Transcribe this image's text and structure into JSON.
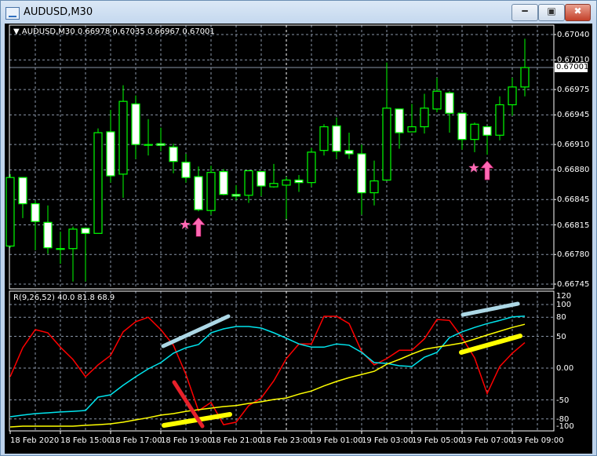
{
  "window": {
    "title": "AUDUSD,M30",
    "icon": "chart-window-icon",
    "buttons": [
      "minimize",
      "maximize",
      "close"
    ]
  },
  "chart": {
    "header": "AUDUSD,M30  0.66978 0.67035 0.66967 0.67001",
    "current_price": "0.67001",
    "price_axis": [
      "0.67040",
      "0.67010",
      "0.66975",
      "0.66945",
      "0.66910",
      "0.66880",
      "0.66845",
      "0.66815",
      "0.66780",
      "0.66745"
    ],
    "time_axis": [
      "18 Feb 2020",
      "18 Feb 15:00",
      "18 Feb 17:00",
      "18 Feb 19:00",
      "18 Feb 21:00",
      "18 Feb 23:00",
      "19 Feb 01:00",
      "19 Feb 03:00",
      "19 Feb 05:00",
      "19 Feb 07:00",
      "19 Feb 09:00"
    ],
    "colors": {
      "background": "#000000",
      "candle": "#00ff00",
      "bear_body": "#ffffff",
      "grid": "#8a96a8",
      "arrow": "#ff69b4"
    }
  },
  "indicator": {
    "label": "R(9,26,52) 40.0 81.8 68.9",
    "axis": [
      "120",
      "100",
      "80",
      "50",
      "0.00",
      "-50",
      "-80",
      "-100"
    ],
    "colors": {
      "fast": "#ff0000",
      "mid": "#00e5ee",
      "slow": "#ffff00"
    }
  },
  "chart_data": [
    {
      "type": "candlestick",
      "symbol": "AUDUSD",
      "timeframe": "M30",
      "ylim": [
        0.66745,
        0.6704
      ],
      "ohlc": [
        [
          0.6679,
          0.66875,
          0.66788,
          0.66871
        ],
        [
          0.66871,
          0.66871,
          0.66823,
          0.6684
        ],
        [
          0.6684,
          0.66844,
          0.66785,
          0.66819
        ],
        [
          0.66818,
          0.66838,
          0.66781,
          0.66788
        ],
        [
          0.66787,
          0.66807,
          0.66769,
          0.66787
        ],
        [
          0.66787,
          0.66813,
          0.66748,
          0.6681
        ],
        [
          0.66811,
          0.66812,
          0.66748,
          0.66805
        ],
        [
          0.66805,
          0.66929,
          0.66805,
          0.66924
        ],
        [
          0.66925,
          0.66951,
          0.66865,
          0.66873
        ],
        [
          0.66875,
          0.6698,
          0.66847,
          0.66961
        ],
        [
          0.66958,
          0.66968,
          0.66893,
          0.6691
        ],
        [
          0.6691,
          0.6694,
          0.66897,
          0.6691
        ],
        [
          0.66911,
          0.6693,
          0.66902,
          0.66909
        ],
        [
          0.66907,
          0.66911,
          0.66876,
          0.6689
        ],
        [
          0.66889,
          0.66899,
          0.66865,
          0.66871
        ],
        [
          0.66872,
          0.66884,
          0.66831,
          0.66833
        ],
        [
          0.66832,
          0.66885,
          0.66827,
          0.66877
        ],
        [
          0.66878,
          0.66881,
          0.6685,
          0.66851
        ],
        [
          0.66851,
          0.66862,
          0.66844,
          0.66849
        ],
        [
          0.6685,
          0.6688,
          0.66841,
          0.66879
        ],
        [
          0.66878,
          0.66878,
          0.66849,
          0.66861
        ],
        [
          0.6686,
          0.66887,
          0.66859,
          0.66864
        ],
        [
          0.66862,
          0.66872,
          0.66822,
          0.66868
        ],
        [
          0.66868,
          0.66874,
          0.66854,
          0.66865
        ],
        [
          0.66865,
          0.66906,
          0.6686,
          0.66901
        ],
        [
          0.66903,
          0.66934,
          0.66897,
          0.66931
        ],
        [
          0.66932,
          0.66942,
          0.66893,
          0.66902
        ],
        [
          0.66903,
          0.66924,
          0.66893,
          0.66899
        ],
        [
          0.66899,
          0.6691,
          0.66827,
          0.66853
        ],
        [
          0.66853,
          0.66891,
          0.66838,
          0.66867
        ],
        [
          0.66868,
          0.67007,
          0.66868,
          0.66953
        ],
        [
          0.66952,
          0.66952,
          0.66905,
          0.66924
        ],
        [
          0.66925,
          0.66958,
          0.66925,
          0.66931
        ],
        [
          0.66931,
          0.6697,
          0.66923,
          0.66953
        ],
        [
          0.66952,
          0.66989,
          0.66948,
          0.66973
        ],
        [
          0.66971,
          0.66973,
          0.66924,
          0.66947
        ],
        [
          0.66947,
          0.66947,
          0.66904,
          0.66916
        ],
        [
          0.66916,
          0.66936,
          0.66901,
          0.66934
        ],
        [
          0.66931,
          0.66931,
          0.66898,
          0.66921
        ],
        [
          0.66921,
          0.66967,
          0.66915,
          0.66957
        ],
        [
          0.66957,
          0.66989,
          0.66944,
          0.66978
        ],
        [
          0.66978,
          0.67035,
          0.66967,
          0.67001
        ]
      ],
      "signals": [
        {
          "bar": 15,
          "type": "buy-arrow"
        },
        {
          "bar": 38,
          "type": "buy-arrow"
        }
      ]
    },
    {
      "type": "line",
      "ylim": [
        -100,
        120
      ],
      "series": [
        {
          "values": [
            -13.6,
            32,
            60.5,
            55.6,
            33,
            13.6,
            -13.6,
            5,
            20,
            57,
            73,
            80,
            60.5,
            36,
            -10,
            -67,
            -54,
            -89,
            -85,
            -59,
            -47,
            -20,
            15,
            38,
            38,
            81.5,
            81.5,
            70,
            26,
            5,
            15,
            28,
            28,
            46,
            76.5,
            75,
            48,
            16,
            -40,
            2.5,
            23.5,
            40.0
          ]
        },
        {
          "values": [
            -76.5,
            -74,
            -71.6,
            -70.4,
            -69,
            -68,
            -66.7,
            -45.7,
            -42,
            -27,
            -13.6,
            -1.2,
            8.6,
            23.5,
            32,
            37,
            55.6,
            61.7,
            65.4,
            65.4,
            63,
            55.6,
            47,
            38,
            33,
            33,
            38,
            36,
            24.7,
            8.6,
            7.4,
            3.7,
            2.5,
            17,
            24.7,
            48,
            57,
            64,
            70,
            75,
            80.5,
            81.8
          ]
        },
        {
          "values": [
            -92.6,
            -91.4,
            -91.4,
            -91.4,
            -91.4,
            -91.4,
            -90,
            -89,
            -87.7,
            -85,
            -81.5,
            -78,
            -74,
            -71.6,
            -68,
            -65.4,
            -63,
            -60.5,
            -59,
            -55.6,
            -53,
            -49.4,
            -47,
            -41,
            -36,
            -28,
            -21,
            -15,
            -10,
            -5,
            6,
            13.6,
            22,
            29.6,
            33,
            36,
            39.5,
            45.7,
            52,
            58,
            64,
            68.9
          ]
        }
      ]
    }
  ]
}
